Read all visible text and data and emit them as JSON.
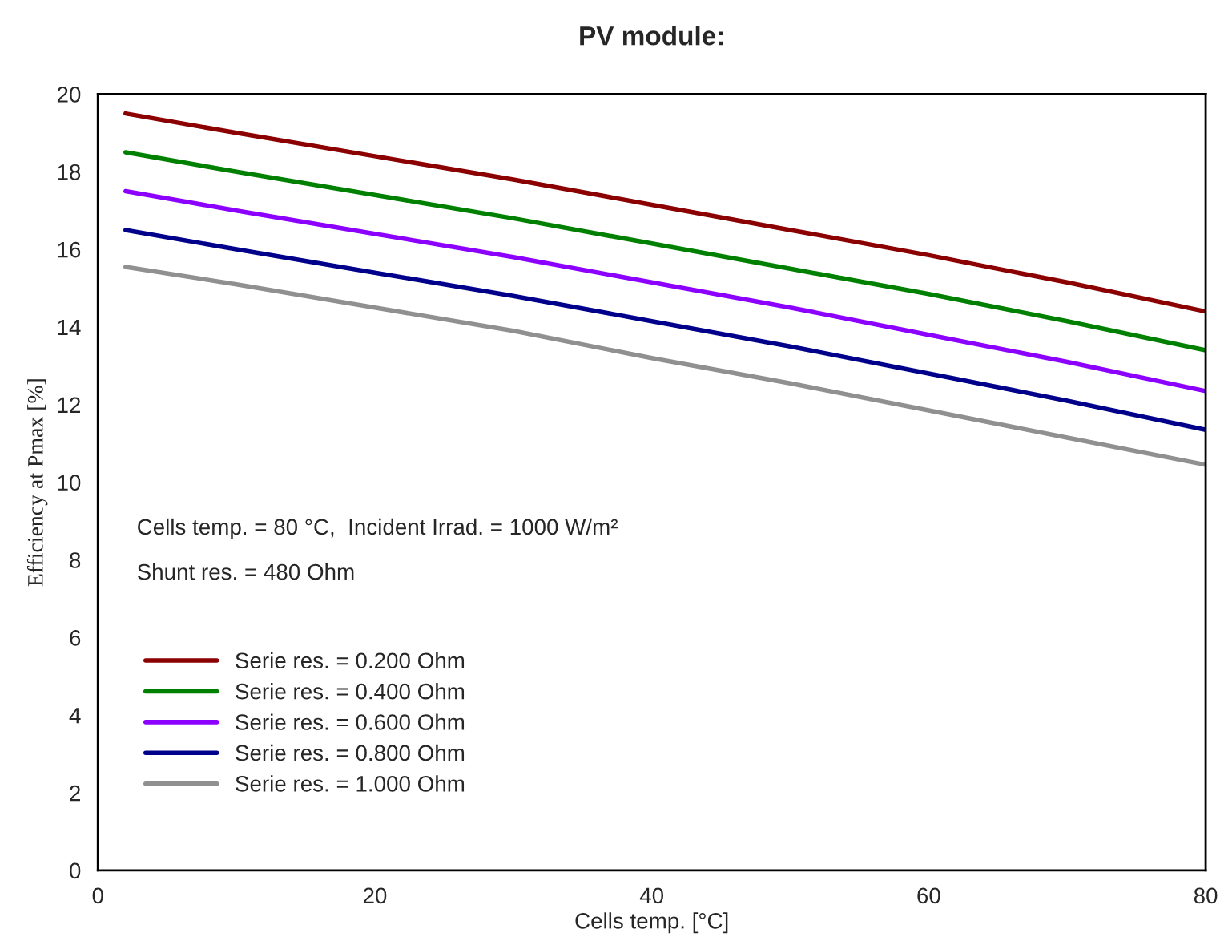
{
  "chart_data": {
    "type": "line",
    "title": "PV module:",
    "xlabel": "Cells temp. [°C]",
    "ylabel": "Efficiency at Pmax [%]",
    "x": [
      2,
      10,
      20,
      30,
      40,
      50,
      60,
      70,
      80
    ],
    "series": [
      {
        "name": "Serie res. = 0.200 Ohm",
        "color": "#8b0000",
        "values": [
          19.5,
          19.0,
          18.4,
          17.8,
          17.15,
          16.5,
          15.85,
          15.15,
          14.4
        ]
      },
      {
        "name": "Serie res. = 0.400 Ohm",
        "color": "#008000",
        "values": [
          18.5,
          18.0,
          17.4,
          16.8,
          16.15,
          15.5,
          14.85,
          14.15,
          13.4
        ]
      },
      {
        "name": "Serie res. = 0.600 Ohm",
        "color": "#8b00ff",
        "values": [
          17.5,
          17.0,
          16.4,
          15.8,
          15.15,
          14.5,
          13.8,
          13.1,
          12.35
        ]
      },
      {
        "name": "Serie res. = 0.800 Ohm",
        "color": "#00008b",
        "values": [
          16.5,
          16.0,
          15.4,
          14.8,
          14.15,
          13.5,
          12.8,
          12.1,
          11.35
        ]
      },
      {
        "name": "Serie res. = 1.000 Ohm",
        "color": "#909090",
        "values": [
          15.55,
          15.1,
          14.5,
          13.9,
          13.2,
          12.55,
          11.85,
          11.15,
          10.45
        ]
      }
    ],
    "xlim": [
      0,
      80
    ],
    "xticks": [
      0,
      20,
      40,
      60,
      80
    ],
    "ylim": [
      0,
      20
    ],
    "yticks": [
      0,
      2,
      4,
      6,
      8,
      10,
      12,
      14,
      16,
      18,
      20
    ],
    "annotations": [
      "Cells temp. = 80 °C,  Incident Irrad. = 1000 W/m²",
      "Shunt res. = 480 Ohm"
    ],
    "legend": "bottom left",
    "grid": false,
    "marker": "none",
    "line_style": "solid"
  }
}
